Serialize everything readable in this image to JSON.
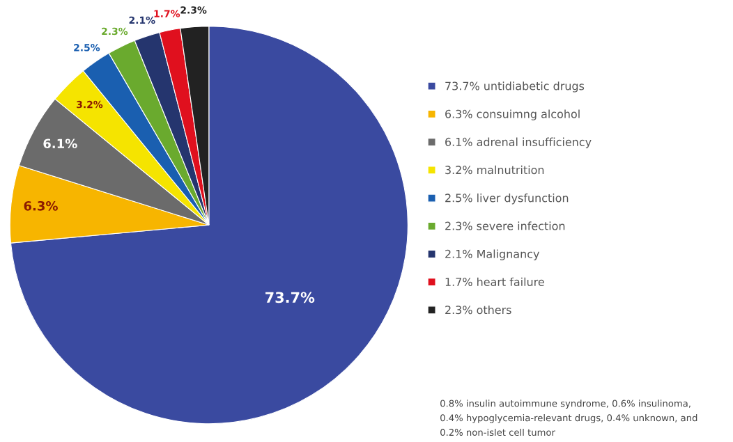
{
  "chart_data": {
    "type": "pie",
    "categories": [
      "73.7% untidiabetic drugs",
      "6.3% consuimng alcohol",
      "6.1% adrenal insufficiency",
      "3.2% malnutrition",
      "2.5% liver dysfunction",
      "2.3% severe infection",
      "2.1% Malignancy",
      "1.7% heart failure",
      "2.3% others"
    ],
    "values": [
      73.7,
      6.3,
      6.1,
      3.2,
      2.5,
      2.3,
      2.1,
      1.7,
      2.3
    ],
    "colors": [
      "#3a4aa0",
      "#f7b500",
      "#6b6b6b",
      "#f5e400",
      "#1a5fb0",
      "#6aaa2e",
      "#25356e",
      "#e0101e",
      "#222222"
    ],
    "value_labels": [
      "73.7%",
      "6.3%",
      "6.1%",
      "3.2%",
      "2.5%",
      "2.3%",
      "2.1%",
      "1.7%",
      "2.3%"
    ],
    "legend": "right",
    "annotations": [
      "0.8% insulin autoimmune syndrome, 0.6% insulinoma,\n0.4% hypoglycemia-relevant drugs, 0.4% unknown, and\n0.2% non-islet cell tumor"
    ]
  }
}
